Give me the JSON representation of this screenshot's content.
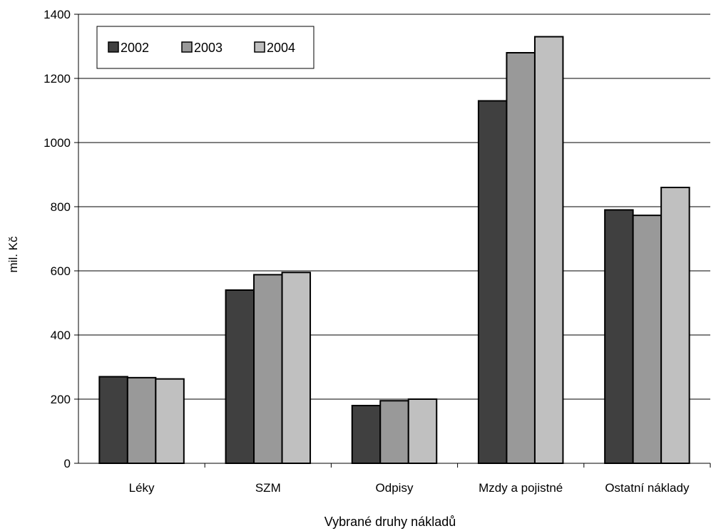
{
  "chart_data": {
    "type": "bar",
    "title": "",
    "xlabel": "Vybrané druhy nákladů",
    "ylabel": "mil. Kč",
    "categories": [
      "Léky",
      "SZM",
      "Odpisy",
      "Mzdy a pojistné",
      "Ostatní náklady"
    ],
    "series": [
      {
        "name": "2002",
        "values": [
          270,
          540,
          180,
          1130,
          790
        ],
        "color": "#404040"
      },
      {
        "name": "2003",
        "values": [
          267,
          588,
          195,
          1280,
          773
        ],
        "color": "#999999"
      },
      {
        "name": "2004",
        "values": [
          263,
          595,
          200,
          1330,
          860
        ],
        "color": "#c0c0c0"
      }
    ],
    "ylim": [
      0,
      1400
    ],
    "yticks": [
      0,
      200,
      400,
      600,
      800,
      1000,
      1200,
      1400
    ],
    "grid": true,
    "legend_position": "top-left"
  }
}
